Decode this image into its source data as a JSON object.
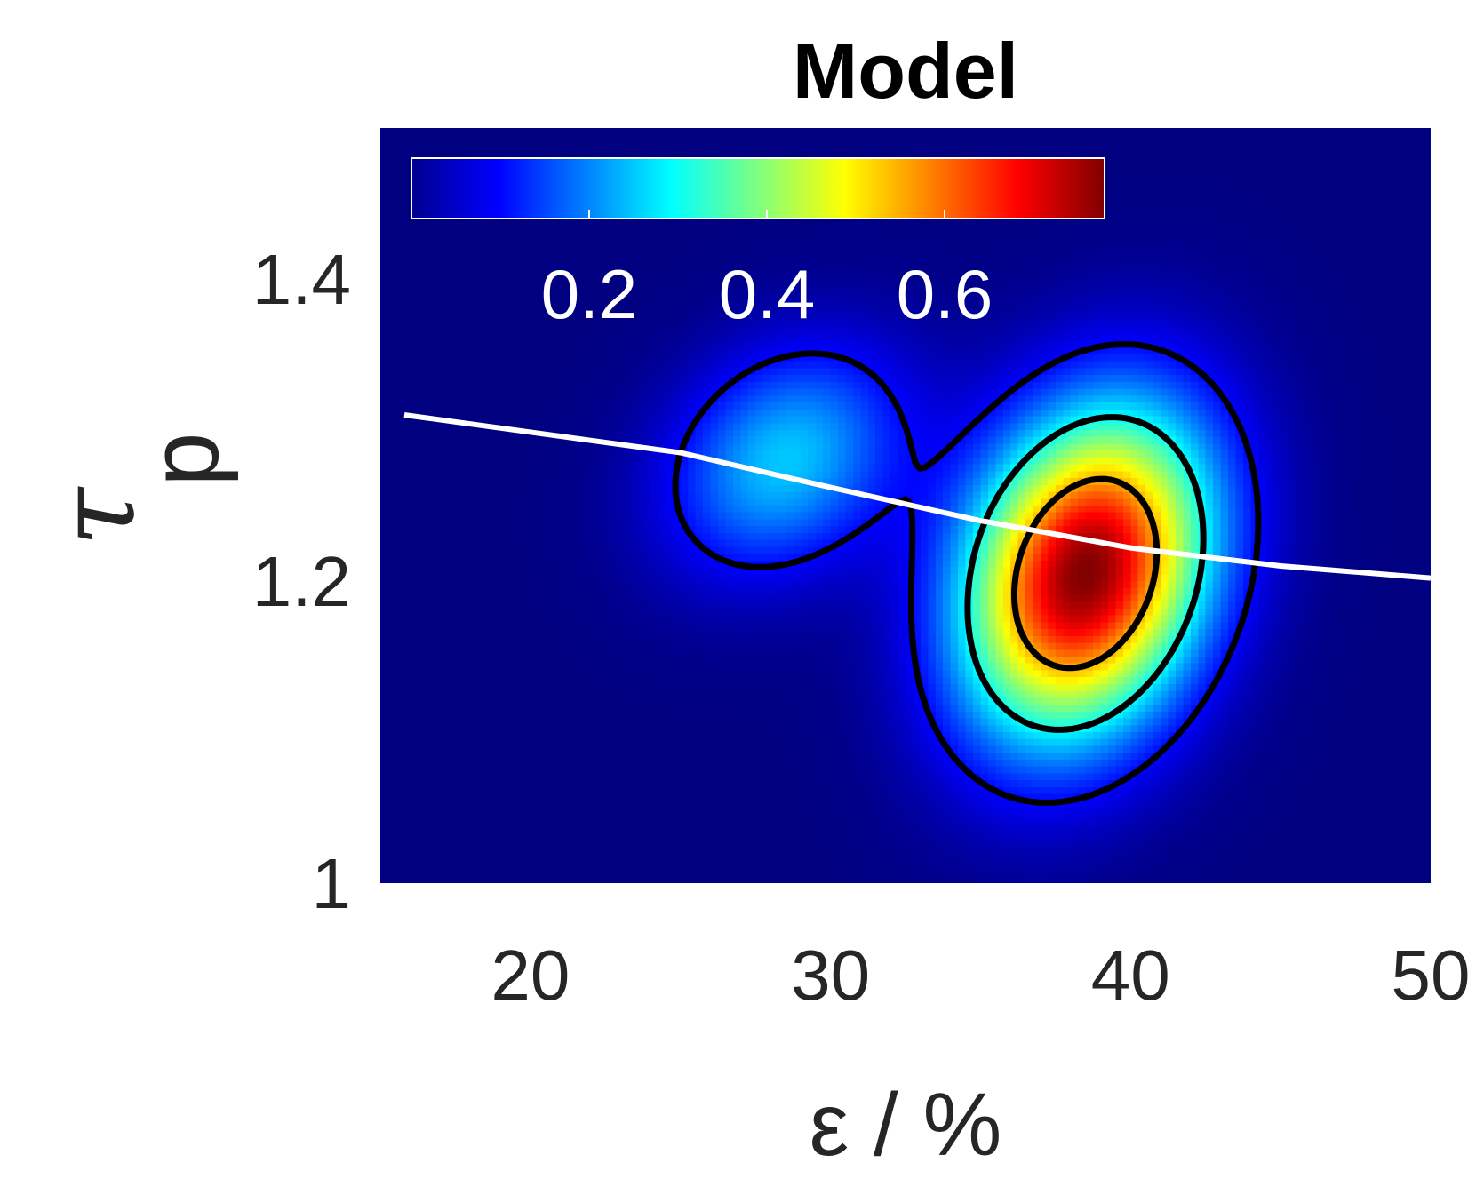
{
  "chart_data": {
    "type": "heatmap",
    "title": "Model",
    "xlabel": "ε / %",
    "ylabel": {
      "symbol": "τ",
      "subscript": "p"
    },
    "xlim": [
      15,
      50
    ],
    "ylim": [
      1.0,
      1.5
    ],
    "xticks": [
      "20",
      "30",
      "40",
      "50"
    ],
    "yticks": [
      "1",
      "1.2",
      "1.4"
    ],
    "xtick_values": [
      20,
      30,
      40,
      50
    ],
    "ytick_values": [
      1.0,
      1.2,
      1.4
    ],
    "colormap": "jet",
    "colorbar": {
      "orientation": "horizontal",
      "placement": "inside-top-left",
      "range": [
        0,
        0.78
      ],
      "ticks": [
        "0.2",
        "0.4",
        "0.6"
      ],
      "tick_values": [
        0.2,
        0.4,
        0.6
      ]
    },
    "density_peak": {
      "x": 38.5,
      "y": 1.205,
      "value": 0.78
    },
    "contour_levels": [
      0.1,
      0.3,
      0.55
    ],
    "fit_line": {
      "color": "#ffffff",
      "points": [
        [
          15.8,
          1.31
        ],
        [
          25,
          1.285
        ],
        [
          30,
          1.262
        ],
        [
          35,
          1.24
        ],
        [
          40,
          1.222
        ],
        [
          45,
          1.21
        ],
        [
          50,
          1.202
        ]
      ]
    },
    "background_color": "#00008f"
  }
}
